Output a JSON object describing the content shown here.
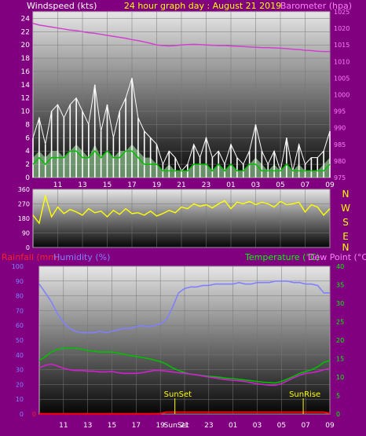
{
  "header": {
    "wind_label": "Windspeed (kts)",
    "title": "24 hour graph day : August 21 2019",
    "baro_label": "Barometer (hpa)"
  },
  "bottom_header": {
    "rain_label": "Rainfall (mm)",
    "humidity_label": "Humidity (%)",
    "temp_label": "Temperature (°C)",
    "dew_label": "Dew Point (°C)"
  },
  "colors": {
    "background": "#800080",
    "wind_speed": "#ffffff",
    "wind_gust_fill": "#a6e8a6",
    "wind_avg": "#00c000",
    "barometer": "#d040d0",
    "direction": "#ffff00",
    "humidity": "#8080ff",
    "temperature": "#00c000",
    "dew_point": "#d020d0",
    "rainfall": "#ff0000",
    "sun_label": "#ffff00",
    "baro_axis_text": "#ff80ff",
    "rain_axis_text": "#ff2020",
    "temp_axis_text": "#00ff00",
    "wind_axis_text": "#ffffff"
  },
  "x_ticks": [
    "11",
    "13",
    "15",
    "17",
    "19",
    "21",
    "23",
    "01",
    "03",
    "05",
    "07",
    "09"
  ],
  "compass": [
    "N",
    "W",
    "S",
    "E",
    "N"
  ],
  "events": {
    "sunset": "SunSet",
    "sunrise": "SunRise"
  },
  "chart_data": [
    {
      "type": "line",
      "name": "wind",
      "title": "24 hour graph day : August 21 2019",
      "x_hours": [
        9,
        9.5,
        10,
        10.5,
        11,
        11.5,
        12,
        12.5,
        13,
        13.5,
        14,
        14.5,
        15,
        15.5,
        16,
        16.5,
        17,
        17.5,
        18,
        18.5,
        19,
        19.5,
        20,
        20.5,
        21,
        21.5,
        22,
        22.5,
        23,
        23.5,
        24,
        24.5,
        25,
        25.5,
        26,
        26.5,
        27,
        27.5,
        28,
        28.5,
        29,
        29.5,
        30,
        30.5,
        31,
        31.5,
        32,
        32.5,
        33
      ],
      "y_left_label": "Windspeed (kts)",
      "y_left_range": [
        0,
        25
      ],
      "y_left_ticks": [
        0,
        2,
        4,
        6,
        8,
        10,
        12,
        14,
        16,
        18,
        20,
        22,
        24
      ],
      "y_right_label": "Barometer (hpa)",
      "y_right_range": [
        975,
        1025
      ],
      "y_right_ticks": [
        975,
        980,
        985,
        990,
        995,
        1000,
        1005,
        1010,
        1015,
        1020,
        1025
      ],
      "series": [
        {
          "name": "Windspeed",
          "values": [
            6,
            9,
            5,
            10,
            11,
            9,
            11,
            12,
            10,
            8,
            14,
            7,
            11,
            6,
            10,
            12,
            15,
            9,
            7,
            6,
            5,
            2,
            4,
            3,
            1,
            2,
            5,
            3,
            6,
            3,
            4,
            2,
            5,
            3,
            2,
            4,
            8,
            4,
            2,
            4,
            1,
            6,
            1,
            5,
            2,
            3,
            3,
            4,
            7
          ]
        },
        {
          "name": "Gust",
          "values": [
            3,
            4,
            3,
            4,
            4,
            3,
            4,
            5,
            4,
            3,
            5,
            3,
            4,
            3,
            4,
            4,
            5,
            4,
            3,
            3,
            2,
            1,
            2,
            1,
            1,
            1,
            2,
            2,
            2,
            1,
            2,
            1,
            2,
            1,
            1,
            2,
            3,
            2,
            1,
            2,
            1,
            2,
            1,
            2,
            1,
            1,
            1,
            2,
            3
          ]
        },
        {
          "name": "Average",
          "values": [
            2,
            3,
            2,
            3,
            3,
            3,
            4,
            4,
            3,
            3,
            4,
            3,
            4,
            3,
            3,
            4,
            4,
            3,
            2,
            2,
            2,
            1,
            1,
            1,
            1,
            1,
            2,
            2,
            2,
            1,
            2,
            1,
            2,
            1,
            1,
            2,
            2,
            1,
            1,
            1,
            1,
            2,
            1,
            1,
            1,
            1,
            1,
            1,
            2
          ]
        },
        {
          "name": "Barometer",
          "values": [
            1021.5,
            1021,
            1020.7,
            1020.4,
            1020.1,
            1019.8,
            1019.5,
            1019.3,
            1019,
            1018.7,
            1018.5,
            1018.2,
            1017.9,
            1017.6,
            1017.3,
            1017,
            1016.6,
            1016.3,
            1015.9,
            1015.5,
            1015,
            1014.8,
            1014.7,
            1014.8,
            1015,
            1015.1,
            1015.2,
            1015.1,
            1015,
            1014.9,
            1014.8,
            1014.8,
            1014.7,
            1014.6,
            1014.5,
            1014.4,
            1014.3,
            1014.2,
            1014.2,
            1014.1,
            1014,
            1013.9,
            1013.7,
            1013.6,
            1013.4,
            1013.3,
            1013.1,
            1013,
            1013
          ]
        }
      ]
    },
    {
      "type": "line",
      "name": "wind_direction",
      "x_hours": [
        9,
        9.5,
        10,
        10.5,
        11,
        11.5,
        12,
        12.5,
        13,
        13.5,
        14,
        14.5,
        15,
        15.5,
        16,
        16.5,
        17,
        17.5,
        18,
        18.5,
        19,
        19.5,
        20,
        20.5,
        21,
        21.5,
        22,
        22.5,
        23,
        23.5,
        24,
        24.5,
        25,
        25.5,
        26,
        26.5,
        27,
        27.5,
        28,
        28.5,
        29,
        29.5,
        30,
        30.5,
        31,
        31.5,
        32,
        32.5,
        33
      ],
      "y_range": [
        0,
        360
      ],
      "y_ticks": [
        0,
        90,
        180,
        270,
        360
      ],
      "series": [
        {
          "name": "Direction",
          "values": [
            200,
            150,
            320,
            190,
            250,
            210,
            235,
            220,
            200,
            240,
            215,
            225,
            190,
            230,
            205,
            240,
            210,
            215,
            200,
            225,
            195,
            210,
            230,
            215,
            250,
            240,
            270,
            255,
            265,
            245,
            270,
            290,
            240,
            280,
            270,
            285,
            265,
            280,
            270,
            250,
            285,
            265,
            270,
            280,
            220,
            265,
            250,
            200,
            240
          ]
        }
      ]
    },
    {
      "type": "line",
      "name": "temp_humidity",
      "x_hours": [
        9,
        9.5,
        10,
        10.5,
        11,
        11.5,
        12,
        12.5,
        13,
        13.5,
        14,
        14.5,
        15,
        15.5,
        16,
        16.5,
        17,
        17.5,
        18,
        18.5,
        19,
        19.5,
        20,
        20.5,
        21,
        21.5,
        22,
        22.5,
        23,
        23.5,
        24,
        24.5,
        25,
        25.5,
        26,
        26.5,
        27,
        27.5,
        28,
        28.5,
        29,
        29.5,
        30,
        30.5,
        31,
        31.5,
        32,
        32.5,
        33
      ],
      "y_left_label": "Humidity (%)",
      "y_left_range": [
        0,
        100
      ],
      "y_left_ticks": [
        0,
        10,
        20,
        30,
        40,
        50,
        60,
        70,
        80,
        90,
        100
      ],
      "y_right_label": "Temperature (°C)",
      "y_right_range": [
        0,
        40
      ],
      "y_right_ticks": [
        0,
        5,
        10,
        15,
        20,
        25,
        30,
        35,
        40
      ],
      "rain_label": "Rainfall (mm)",
      "rain_ticks": [
        "0",
        "",
        "",
        "",
        "",
        "",
        "",
        "",
        "",
        "",
        ""
      ],
      "series": [
        {
          "name": "Humidity",
          "values": [
            88,
            82,
            76,
            68,
            62,
            58,
            56,
            55,
            55,
            55,
            56,
            55,
            56,
            57,
            58,
            58,
            59,
            60,
            59,
            60,
            61,
            64,
            72,
            82,
            85,
            86,
            86,
            87,
            87,
            88,
            88,
            88,
            88,
            89,
            88,
            88,
            89,
            89,
            89,
            90,
            90,
            90,
            89,
            89,
            88,
            88,
            87,
            82,
            82
          ]
        },
        {
          "name": "Temperature",
          "values": [
            14.5,
            15.5,
            16.8,
            17.5,
            17.8,
            17.8,
            17.8,
            17.6,
            17.2,
            17,
            16.8,
            16.8,
            16.8,
            16.5,
            16.2,
            15.8,
            15.6,
            15.3,
            15,
            14.6,
            14.2,
            13.5,
            12.5,
            11.8,
            11.2,
            10.8,
            10.6,
            10.4,
            10.2,
            10.1,
            9.9,
            9.7,
            9.6,
            9.4,
            9.2,
            9,
            8.8,
            8.6,
            8.5,
            8.4,
            8.8,
            9.5,
            10.2,
            11,
            11.5,
            12,
            12.8,
            14,
            14.5
          ]
        },
        {
          "name": "Dew Point",
          "values": [
            12.5,
            13.2,
            13.5,
            13,
            12.4,
            12,
            11.8,
            11.8,
            11.6,
            11.6,
            11.4,
            11.4,
            11.5,
            11.2,
            11,
            11,
            11,
            11.2,
            11.5,
            11.8,
            11.8,
            11.6,
            11.4,
            11.2,
            11,
            10.8,
            10.6,
            10.3,
            10,
            9.8,
            9.5,
            9.3,
            9.1,
            9,
            8.8,
            8.5,
            8.2,
            8,
            7.8,
            7.8,
            8.2,
            9,
            9.8,
            10.5,
            11,
            11.2,
            11.5,
            12,
            12.3
          ]
        },
        {
          "name": "Rainfall",
          "values": [
            0.2,
            0.2,
            0.2,
            0.2,
            0.2,
            0.2,
            0.2,
            0.2,
            0.2,
            0.2,
            0.2,
            0.2,
            0.2,
            0.2,
            0.2,
            0.2,
            0.2,
            0.2,
            0.2,
            0.2,
            0.3,
            1.2,
            1.2,
            1.2,
            1.2,
            1.2,
            1.2,
            1.2,
            1.2,
            1.2,
            1.2,
            1.2,
            1.2,
            1.2,
            1.2,
            1.2,
            1.2,
            1.2,
            1.2,
            1.2,
            1.2,
            1.2,
            1.2,
            1.2,
            1.2,
            1.2,
            1.2,
            1.2,
            0.4
          ]
        }
      ]
    }
  ]
}
